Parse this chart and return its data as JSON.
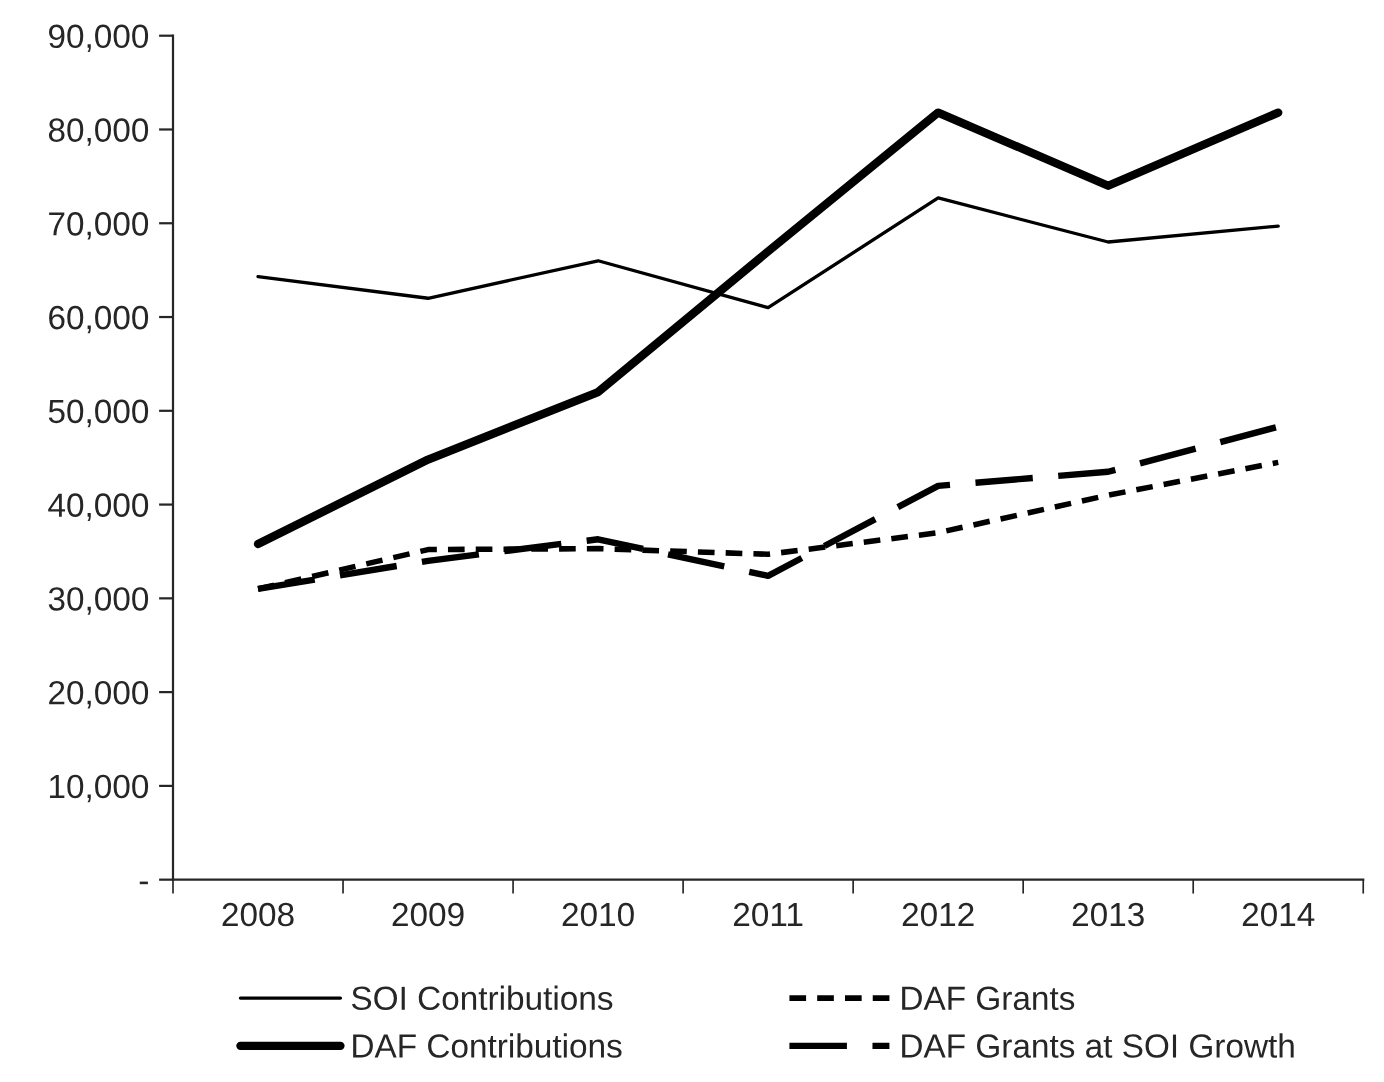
{
  "chart_data": {
    "type": "line",
    "categories": [
      "2008",
      "2009",
      "2010",
      "2011",
      "2012",
      "2013",
      "2014"
    ],
    "series": [
      {
        "name": "SOI Contributions",
        "color": "#000000",
        "line_style": "solid",
        "values": [
          64300,
          62000,
          66000,
          61000,
          72700,
          68000,
          69700
        ]
      },
      {
        "name": "DAF Contributions",
        "color": "#000000",
        "line_style": "solid",
        "values": [
          35800,
          44800,
          52000,
          67000,
          81800,
          74000,
          81800
        ]
      },
      {
        "name": "DAF Grants",
        "color": "#000000",
        "line_style": "dotted",
        "values": [
          31000,
          35200,
          35300,
          34700,
          37000,
          41000,
          44500
        ]
      },
      {
        "name": "DAF Grants at SOI Growth",
        "color": "#000000",
        "line_style": "dashed",
        "values": [
          31000,
          34000,
          36300,
          32400,
          42000,
          43500,
          48300
        ]
      }
    ],
    "ylim": [
      0,
      90000
    ],
    "yticks": [
      {
        "value": 0,
        "label": "-"
      },
      {
        "value": 10000,
        "label": "10,000"
      },
      {
        "value": 20000,
        "label": "20,000"
      },
      {
        "value": 30000,
        "label": "30,000"
      },
      {
        "value": 40000,
        "label": "40,000"
      },
      {
        "value": 50000,
        "label": "50,000"
      },
      {
        "value": 60000,
        "label": "60,000"
      },
      {
        "value": 70000,
        "label": "70,000"
      },
      {
        "value": 80000,
        "label": "80,000"
      },
      {
        "value": 90000,
        "label": "90,000"
      }
    ],
    "grid": false,
    "legend": "bottom",
    "marker": "none"
  }
}
